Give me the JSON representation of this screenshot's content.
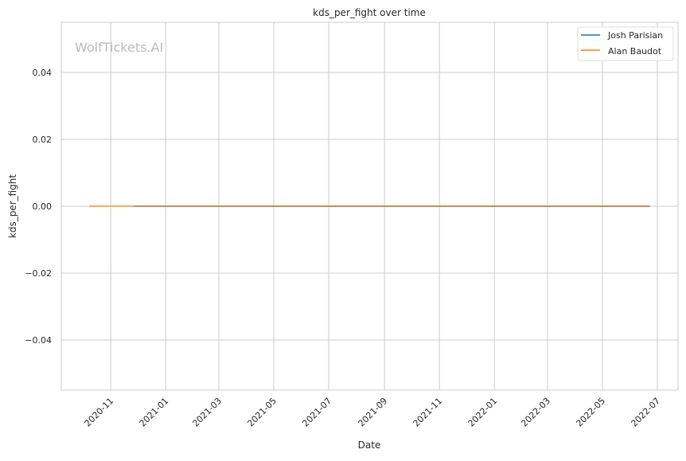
{
  "chart_data": {
    "type": "line",
    "title": "kds_per_fight over time",
    "xlabel": "Date",
    "ylabel": "kds_per_fight",
    "watermark": "WolfTickets.AI",
    "xlim": [
      "2020-09-07",
      "2022-07-24"
    ],
    "ylim": [
      -0.055,
      0.055
    ],
    "x_ticks": [
      "2020-11",
      "2021-01",
      "2021-03",
      "2021-05",
      "2021-07",
      "2021-09",
      "2021-11",
      "2022-01",
      "2022-03",
      "2022-05",
      "2022-07"
    ],
    "y_ticks": [
      0.04,
      0.02,
      0.0,
      -0.02,
      -0.04
    ],
    "y_tick_labels": [
      "0.04",
      "0.02",
      "0.00",
      "−0.02",
      "−0.04"
    ],
    "grid": true,
    "legend_position": "top-right",
    "series": [
      {
        "name": "Josh Parisian",
        "color": "#1f77b4",
        "x": [
          "2020-11-26",
          "2022-06-23"
        ],
        "y": [
          0,
          0
        ]
      },
      {
        "name": "Alan Baudot",
        "color": "#ff7f0e",
        "x": [
          "2020-10-08",
          "2022-06-23"
        ],
        "y": [
          0,
          0
        ]
      }
    ]
  }
}
